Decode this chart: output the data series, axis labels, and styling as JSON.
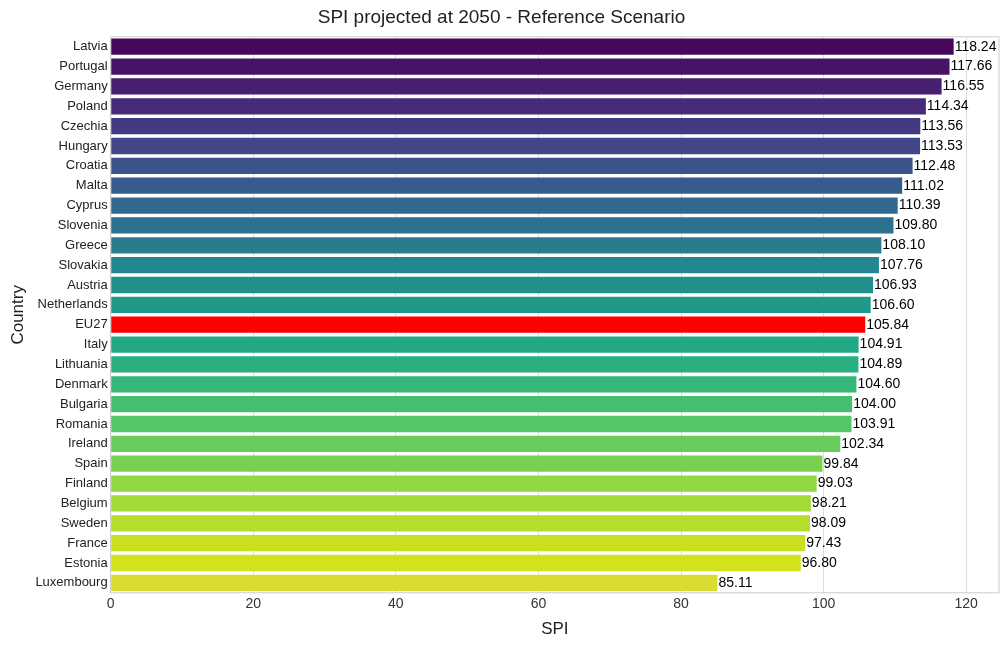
{
  "chart_data": {
    "type": "bar",
    "orientation": "horizontal",
    "title": "SPI projected at 2050 - Reference Scenario",
    "xlabel": "SPI",
    "ylabel": "Country",
    "categories": [
      "Latvia",
      "Portugal",
      "Germany",
      "Poland",
      "Czechia",
      "Hungary",
      "Croatia",
      "Malta",
      "Cyprus",
      "Slovenia",
      "Greece",
      "Slovakia",
      "Austria",
      "Netherlands",
      "EU27",
      "Italy",
      "Lithuania",
      "Denmark",
      "Bulgaria",
      "Romania",
      "Ireland",
      "Spain",
      "Finland",
      "Belgium",
      "Sweden",
      "France",
      "Estonia",
      "Luxembourg"
    ],
    "values": [
      118.24,
      117.66,
      116.55,
      114.34,
      113.56,
      113.53,
      112.48,
      111.02,
      110.39,
      109.8,
      108.1,
      107.76,
      106.93,
      106.6,
      105.84,
      104.91,
      104.89,
      104.6,
      104.0,
      103.91,
      102.34,
      99.84,
      99.03,
      98.21,
      98.09,
      97.43,
      96.8,
      85.11
    ],
    "value_labels": [
      "118.24",
      "117.66",
      "116.55",
      "114.34",
      "113.56",
      "113.53",
      "112.48",
      "111.02",
      "110.39",
      "109.80",
      "108.10",
      "107.76",
      "106.93",
      "106.60",
      "105.84",
      "104.91",
      "104.89",
      "104.60",
      "104.00",
      "103.91",
      "102.34",
      "99.84",
      "99.03",
      "98.21",
      "98.09",
      "97.43",
      "96.80",
      "85.11"
    ],
    "colors": [
      "#46085c",
      "#471366",
      "#481f70",
      "#472a7a",
      "#443983",
      "#404688",
      "#3b528b",
      "#365c8d",
      "#31688e",
      "#2c728e",
      "#287c8e",
      "#24868e",
      "#21908d",
      "#1f9a8a",
      "#ff0000",
      "#22a884",
      "#2ab07f",
      "#35b779",
      "#44bf70",
      "#54c568",
      "#67cc5c",
      "#7ad151",
      "#8fd744",
      "#a2da37",
      "#b5de2b",
      "#c8e020",
      "#d2e21b",
      "#d8dc33"
    ],
    "xlim": [
      0,
      124.6
    ],
    "xticks": [
      0,
      20,
      40,
      60,
      80,
      100,
      120
    ],
    "grid": "x",
    "legend": false
  }
}
